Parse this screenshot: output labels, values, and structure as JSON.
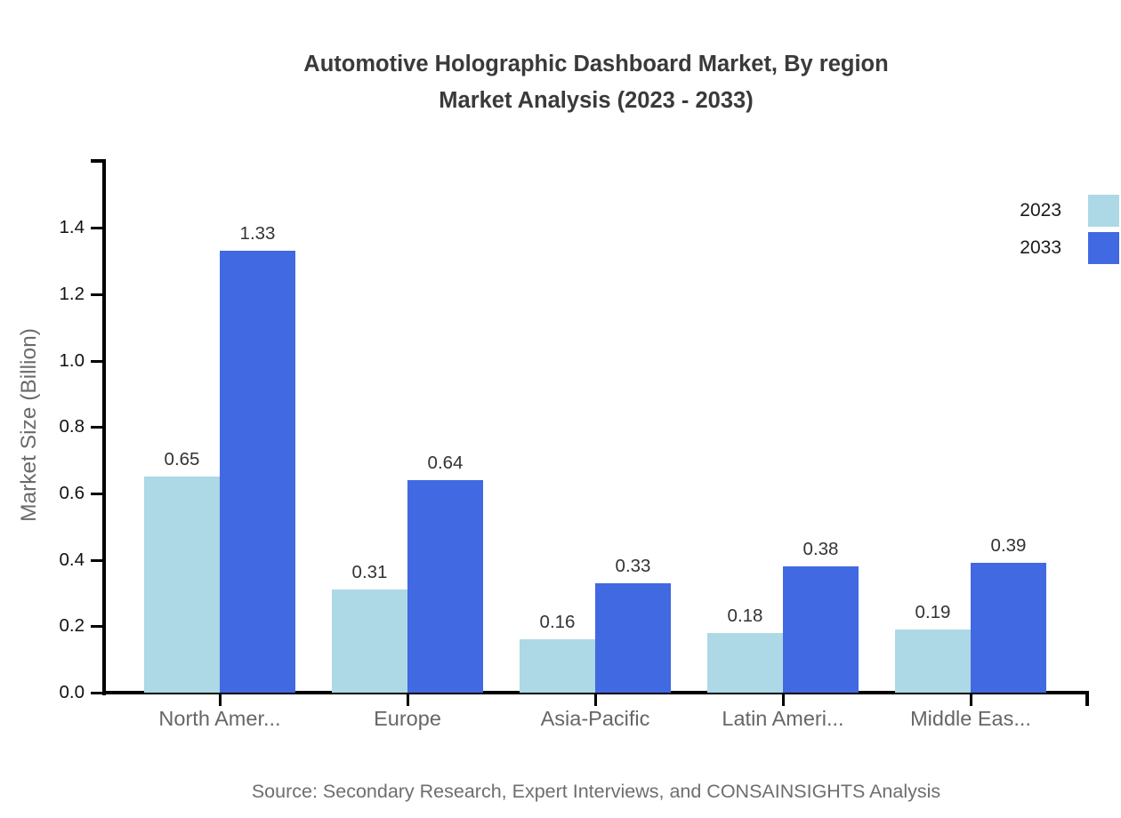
{
  "header": {
    "title_line1": "Automotive Holographic Dashboard Market, By region",
    "title_line2": "Market Analysis (2023 - 2033)"
  },
  "footer": {
    "source": "Source: Secondary Research, Expert Interviews, and CONSAINSIGHTS Analysis"
  },
  "colors": {
    "series_2023": "#ADD8E6",
    "series_2033": "#4169E1",
    "axis": "#000000",
    "title_text": "#3a3a3a",
    "muted_text": "#666666"
  },
  "chart_data": {
    "type": "bar",
    "title": "Automotive Holographic Dashboard Market, By region Market Analysis (2023 - 2033)",
    "categories": [
      "North Amer...",
      "Europe",
      "Asia-Pacific",
      "Latin Ameri...",
      "Middle Eas..."
    ],
    "series": [
      {
        "name": "2023",
        "color": "#ADD8E6",
        "values": [
          0.65,
          0.31,
          0.16,
          0.18,
          0.19
        ]
      },
      {
        "name": "2033",
        "color": "#4169E1",
        "values": [
          1.33,
          0.64,
          0.33,
          0.38,
          0.39
        ]
      }
    ],
    "xlabel": "",
    "ylabel": "Market Size (Billion)",
    "ylim": [
      0,
      1.6
    ],
    "yticks": [
      0.0,
      0.2,
      0.4,
      0.6,
      0.8,
      1.0,
      1.2,
      1.4
    ],
    "grid": false,
    "legend_position": "top-right",
    "value_labels": true,
    "value_label_decimals": 2
  }
}
